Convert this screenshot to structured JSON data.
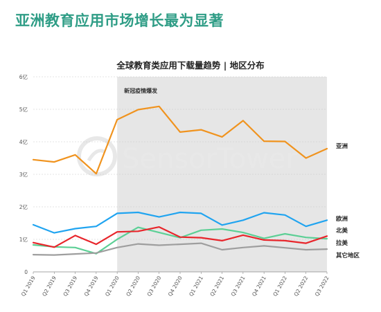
{
  "headline": "亚洲教育应用市场增长最为显著",
  "watermark": "SensorTower",
  "chart_data": {
    "type": "line",
    "title": "全球教育类应用下载量趋势 | 地区分布",
    "categories": [
      "Q1 2019",
      "Q2 2019",
      "Q3 2019",
      "Q4 2019",
      "Q1 2020",
      "Q2 2020",
      "Q3 2020",
      "Q4 2020",
      "Q1 2021",
      "Q2 2021",
      "Q3 2021",
      "Q4 2021",
      "Q1 2022",
      "Q2 2022",
      "Q3 2022"
    ],
    "y_ticks": [
      "0",
      "1亿",
      "2亿",
      "3亿",
      "4亿",
      "5亿",
      "6亿"
    ],
    "ylim": [
      0,
      6
    ],
    "grid": true,
    "legend_placement": "right, at line ends",
    "highlight": {
      "label": "新冠疫情爆发",
      "from": "Q1 2020",
      "to": "Q3 2022",
      "color": "#e6e6e6"
    },
    "series": [
      {
        "name": "亚洲",
        "color": "#f0931e",
        "values": [
          3.45,
          3.38,
          3.6,
          3.02,
          4.68,
          4.99,
          5.09,
          4.3,
          4.37,
          4.15,
          4.65,
          4.02,
          4.01,
          3.5,
          3.79
        ]
      },
      {
        "name": "欧洲",
        "color": "#20a4f0",
        "values": [
          1.45,
          1.2,
          1.33,
          1.4,
          1.8,
          1.83,
          1.69,
          1.83,
          1.8,
          1.44,
          1.59,
          1.82,
          1.75,
          1.4,
          1.59
        ]
      },
      {
        "name": "北美",
        "color": "#5ccf95",
        "values": [
          0.83,
          0.77,
          0.75,
          0.56,
          1.0,
          1.37,
          1.21,
          1.05,
          1.28,
          1.32,
          1.21,
          1.03,
          1.17,
          1.06,
          1.02
        ]
      },
      {
        "name": "拉美",
        "color": "#e8252b",
        "values": [
          0.9,
          0.76,
          1.12,
          0.85,
          1.23,
          1.25,
          1.38,
          1.07,
          1.05,
          0.96,
          1.13,
          0.98,
          0.96,
          0.88,
          1.1
        ]
      },
      {
        "name": "其它地区",
        "color": "#9e9e9e",
        "values": [
          0.53,
          0.52,
          0.55,
          0.58,
          0.75,
          0.86,
          0.82,
          0.85,
          0.88,
          0.68,
          0.75,
          0.8,
          0.74,
          0.68,
          0.7
        ]
      }
    ]
  }
}
